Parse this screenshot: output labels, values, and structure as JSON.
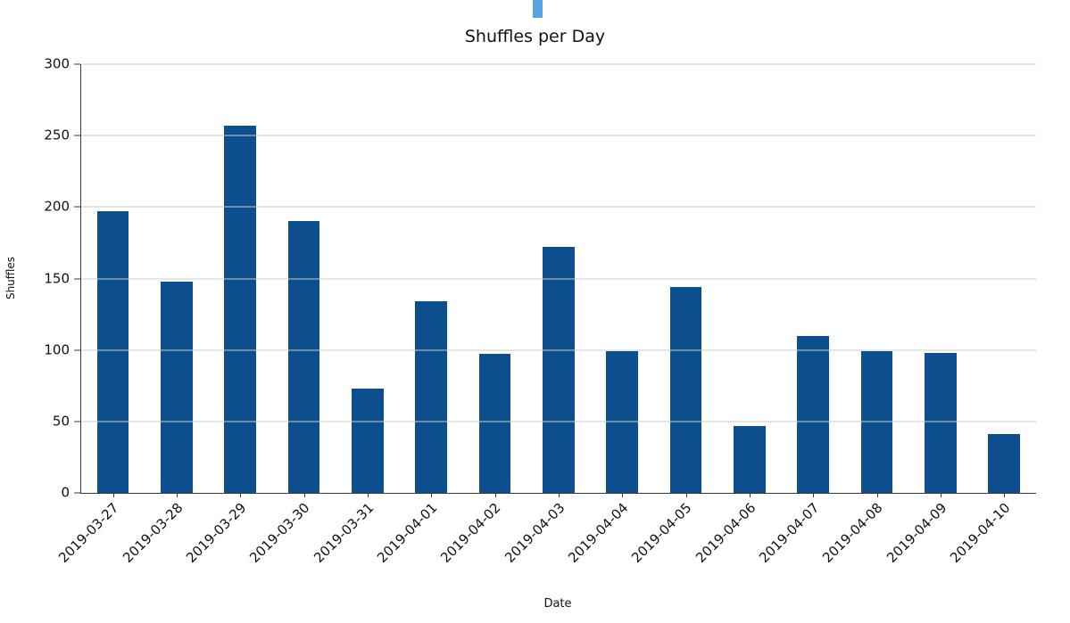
{
  "artifact": {
    "name": "cursor-artifact",
    "color": "#56a3e6"
  },
  "chart_data": {
    "type": "bar",
    "title": "Shuffles per Day",
    "xlabel": "Date",
    "ylabel": "Shuffles",
    "categories": [
      "2019-03-27",
      "2019-03-28",
      "2019-03-29",
      "2019-03-30",
      "2019-03-31",
      "2019-04-01",
      "2019-04-02",
      "2019-04-03",
      "2019-04-04",
      "2019-04-05",
      "2019-04-06",
      "2019-04-07",
      "2019-04-08",
      "2019-04-09",
      "2019-04-10"
    ],
    "values": [
      197,
      148,
      257,
      190,
      73,
      134,
      97,
      172,
      99,
      144,
      47,
      110,
      99,
      98,
      41
    ],
    "ylim": [
      0,
      300
    ],
    "yticks": [
      0,
      50,
      100,
      150,
      200,
      250,
      300
    ],
    "bar_color": "#0d4f8e",
    "grid": "horizontal",
    "gridline_color": "#cccccc",
    "legend": "none",
    "x_tick_rotation_deg": 45
  }
}
